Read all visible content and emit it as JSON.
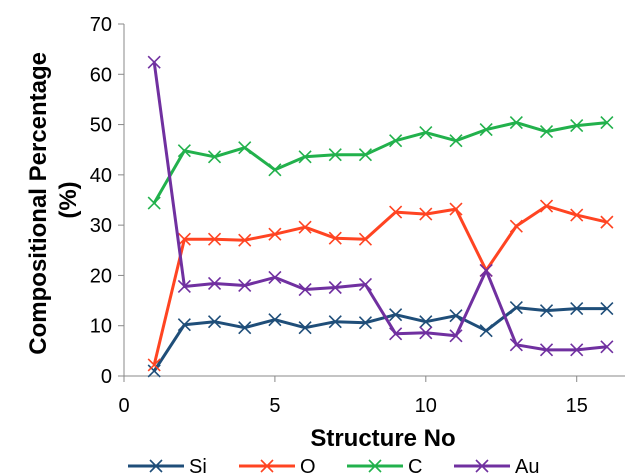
{
  "chart_data": {
    "type": "line",
    "title": "",
    "xlabel": "Structure No",
    "ylabel": "Compositional Percentage (%)",
    "ylabel_lines": [
      "Compositional Percentage",
      "(%)"
    ],
    "xlim": [
      0,
      16.6
    ],
    "ylim": [
      0,
      70
    ],
    "xticks": [
      0,
      5,
      10,
      15
    ],
    "yticks": [
      0,
      10,
      20,
      30,
      40,
      50,
      60,
      70
    ],
    "grid": false,
    "legend_position": "bottom",
    "x": [
      1,
      2,
      3,
      4,
      5,
      6,
      7,
      8,
      9,
      10,
      11,
      12,
      13,
      14,
      15,
      16
    ],
    "series": [
      {
        "name": "Si",
        "color": "#1f4e79",
        "marker": "x-marker-icon",
        "values": [
          1.0,
          10.2,
          10.8,
          9.6,
          11.2,
          9.6,
          10.8,
          10.6,
          12.2,
          10.8,
          12.0,
          9.0,
          13.6,
          13.0,
          13.4,
          13.4
        ]
      },
      {
        "name": "O",
        "color": "#ff4422",
        "marker": "x-marker-icon",
        "values": [
          2.2,
          27.2,
          27.2,
          27.0,
          28.2,
          29.6,
          27.4,
          27.2,
          32.6,
          32.2,
          33.2,
          21.0,
          29.8,
          33.8,
          32.0,
          30.6
        ]
      },
      {
        "name": "C",
        "color": "#22b14c",
        "marker": "x-marker-icon",
        "values": [
          34.4,
          44.8,
          43.6,
          45.4,
          41.0,
          43.6,
          44.0,
          44.0,
          46.8,
          48.4,
          46.8,
          49.0,
          50.4,
          48.6,
          49.8,
          50.4
        ]
      },
      {
        "name": "Au",
        "color": "#7030a0",
        "marker": "x-marker-icon",
        "values": [
          62.4,
          17.8,
          18.4,
          18.0,
          19.6,
          17.2,
          17.6,
          18.2,
          8.4,
          8.6,
          8.0,
          21.0,
          6.2,
          5.2,
          5.2,
          5.8
        ]
      }
    ]
  }
}
